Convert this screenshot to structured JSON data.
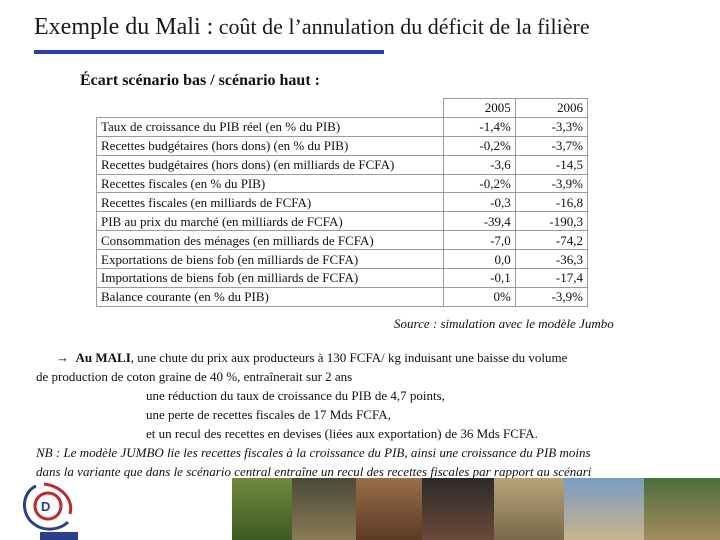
{
  "title": {
    "main": "Exemple du Mali :",
    "rest": " coût de l’annulation du déficit de la filière"
  },
  "subtitle": "Écart scénario bas / scénario haut :",
  "table": {
    "years": [
      "2005",
      "2006"
    ],
    "rows": [
      {
        "label": "Taux de croissance du PIB réel (en % du PIB)",
        "y2005": "-1,4%",
        "y2006": "-3,3%"
      },
      {
        "label": "Recettes budgétaires (hors dons) (en % du PIB)",
        "y2005": "-0,2%",
        "y2006": "-3,7%"
      },
      {
        "label": "Recettes budgétaires (hors dons) (en milliards de FCFA)",
        "y2005": "-3,6",
        "y2006": "-14,5"
      },
      {
        "label": "Recettes fiscales (en % du PIB)",
        "y2005": "-0,2%",
        "y2006": "-3,9%"
      },
      {
        "label": "Recettes fiscales (en milliards de FCFA)",
        "y2005": "-0,3",
        "y2006": "-16,8"
      },
      {
        "label": "PIB au prix du marché (en milliards de FCFA)",
        "y2005": "-39,4",
        "y2006": "-190,3"
      },
      {
        "label": "Consommation des ménages (en milliards de FCFA)",
        "y2005": "-7,0",
        "y2006": "-74,2"
      },
      {
        "label": "Exportations de biens fob (en milliards de FCFA)",
        "y2005": "0,0",
        "y2006": "-36,3"
      },
      {
        "label": "Importations de biens fob (en milliards de FCFA)",
        "y2005": "-0,1",
        "y2006": "-17,4"
      },
      {
        "label": "Balance courante (en % du PIB)",
        "y2005": "0%",
        "y2006": "-3,9%"
      }
    ]
  },
  "source": "Source : simulation avec le modèle Jumbo",
  "body": {
    "arrow": "→",
    "lead_bold": "Au MALI",
    "line1_rest": ", une chute du prix aux producteurs à 130 FCFA/ kg induisant une baisse du volume",
    "line2": "de production de coton graine de 40 %, entraînerait sur 2 ans",
    "line3": "une réduction du taux de croissance du PIB de 4,7 points,",
    "line4": "une perte de recettes fiscales de 17 Mds FCFA,",
    "line5": "et un recul des recettes en devises (liées aux exportation) de 36 Mds FCFA.",
    "nb1": "NB : Le modèle JUMBO lie les recettes fiscales à la croissance du PIB, ainsi une croissance du PIB moins",
    "nb2": "dans la variante que dans le scénario central entraîne un recul des recettes fiscales par rapport au scénari"
  },
  "logo": {
    "caption": "DIAL"
  },
  "colors": {
    "accent_rule": "#2a3fa8",
    "logo_red": "#c0272d",
    "logo_blue": "#2b3d8f"
  }
}
